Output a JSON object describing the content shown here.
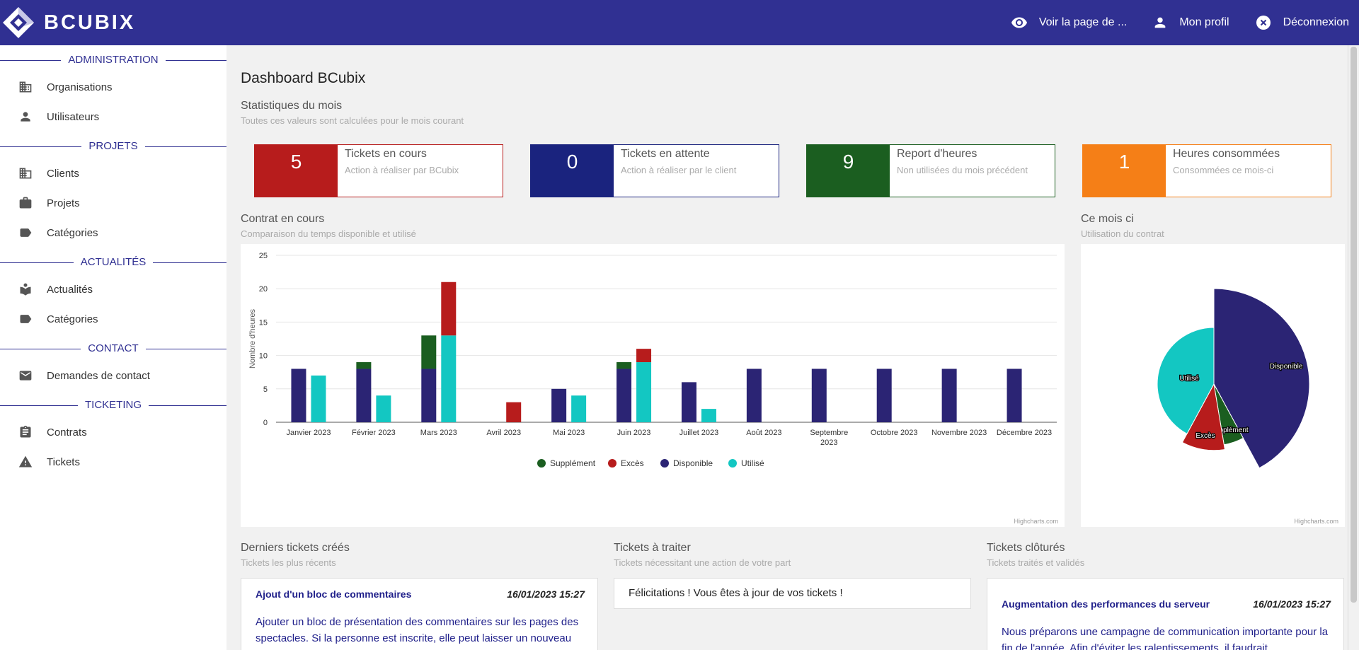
{
  "header": {
    "brand": "BCUBIX",
    "links": [
      {
        "label": "Voir la page de ...",
        "icon": "eye-icon"
      },
      {
        "label": "Mon profil",
        "icon": "person-icon"
      },
      {
        "label": "Déconnexion",
        "icon": "close-circle-icon"
      }
    ]
  },
  "sidebar": {
    "sections": [
      {
        "title": "ADMINISTRATION",
        "items": [
          {
            "label": "Organisations",
            "icon": "building-icon"
          },
          {
            "label": "Utilisateurs",
            "icon": "person-icon"
          }
        ]
      },
      {
        "title": "PROJETS",
        "items": [
          {
            "label": "Clients",
            "icon": "building-icon"
          },
          {
            "label": "Projets",
            "icon": "briefcase-icon"
          },
          {
            "label": "Catégories",
            "icon": "tag-icon"
          }
        ]
      },
      {
        "title": "ACTUALITÉS",
        "items": [
          {
            "label": "Actualités",
            "icon": "news-reader-icon"
          },
          {
            "label": "Catégories",
            "icon": "tag-icon"
          }
        ]
      },
      {
        "title": "CONTACT",
        "items": [
          {
            "label": "Demandes de contact",
            "icon": "mail-icon"
          }
        ]
      },
      {
        "title": "TICKETING",
        "items": [
          {
            "label": "Contrats",
            "icon": "clipboard-icon"
          },
          {
            "label": "Tickets",
            "icon": "warning-icon"
          }
        ]
      }
    ]
  },
  "dashboard": {
    "title": "Dashboard BCubix",
    "stats_heading": "Statistiques du mois",
    "stats_sub": "Toutes ces valeurs sont calculées pour le mois courant",
    "stats": [
      {
        "value": "5",
        "title": "Tickets en cours",
        "sub": "Action à réaliser par BCubix",
        "color": "#b71c1c"
      },
      {
        "value": "0",
        "title": "Tickets en attente",
        "sub": "Action à réaliser par le client",
        "color": "#1a237e"
      },
      {
        "value": "9",
        "title": "Report d'heures",
        "sub": "Non utilisées du mois précédent",
        "color": "#1b5e20"
      },
      {
        "value": "1",
        "title": "Heures consommées",
        "sub": "Consommées ce mois-ci",
        "color": "#f57f17"
      }
    ],
    "contract_heading": "Contrat en cours",
    "contract_sub": "Comparaison du temps disponible et utilisé",
    "month_heading": "Ce mois ci",
    "month_sub": "Utilisation du contrat",
    "credit": "Highcharts.com"
  },
  "chart_data": [
    {
      "type": "bar",
      "stacking": "normal",
      "categories": [
        "Janvier 2023",
        "Février 2023",
        "Mars 2023",
        "Avril 2023",
        "Mai 2023",
        "Juin 2023",
        "Juillet 2023",
        "Août 2023",
        "Septembre 2023",
        "Octobre 2023",
        "Novembre 2023",
        "Décembre 2023"
      ],
      "ylabel": "Nombre d'heures",
      "ylim": [
        0,
        25
      ],
      "yticks": [
        0,
        5,
        10,
        15,
        20,
        25
      ],
      "grid": true,
      "legend_position": "bottom-center",
      "stacks": {
        "contract": {
          "Disponible": [
            8,
            8,
            8,
            0,
            5,
            8,
            6,
            8,
            8,
            8,
            8,
            8
          ],
          "Supplément": [
            0,
            1,
            5,
            0,
            0,
            1,
            0,
            0,
            0,
            0,
            0,
            0
          ]
        },
        "usage": {
          "Utilisé": [
            7,
            4,
            13,
            0,
            4,
            9,
            2,
            0,
            0,
            0,
            0,
            0
          ],
          "Excès": [
            0,
            0,
            8,
            3,
            0,
            2,
            0,
            0,
            0,
            0,
            0,
            0
          ]
        }
      },
      "series": [
        {
          "name": "Supplément",
          "color": "#1b5e20"
        },
        {
          "name": "Excès",
          "color": "#b71c1c"
        },
        {
          "name": "Disponible",
          "color": "#2b2474"
        },
        {
          "name": "Utilisé",
          "color": "#13c7c2"
        }
      ]
    },
    {
      "type": "pie",
      "layout": "variable-radius",
      "slices": [
        {
          "name": "Disponible",
          "value": 6,
          "color": "#2b2474"
        },
        {
          "name": "Supplément",
          "value": 0.75,
          "color": "#1b5e20"
        },
        {
          "name": "Excès",
          "value": 1.5,
          "color": "#b71c1c"
        },
        {
          "name": "Utilisé",
          "value": 6,
          "color": "#13c7c2"
        }
      ]
    }
  ],
  "tickets": {
    "latest": {
      "heading": "Derniers tickets créés",
      "sub": "Tickets les plus récents",
      "item": {
        "title": "Ajout d'un bloc de commentaires",
        "date": "16/01/2023 15:27",
        "body": "Ajouter un bloc de présentation des commentaires sur les pages des spectacles. Si la personne est inscrite, elle peut laisser un nouveau commentaire."
      }
    },
    "todo": {
      "heading": "Tickets à traiter",
      "sub": "Tickets nécessitant une action de votre part",
      "message": "Félicitations ! Vous êtes à jour de vos tickets !"
    },
    "closed": {
      "heading": "Tickets clôturés",
      "sub": "Tickets traités et validés",
      "item": {
        "title": "Augmentation des performances du serveur",
        "date": "16/01/2023 15:27",
        "body": "Nous préparons une campagne de communication importante pour la fin de l'année. Afin d'éviter les ralentissements, il faudrait"
      }
    }
  }
}
